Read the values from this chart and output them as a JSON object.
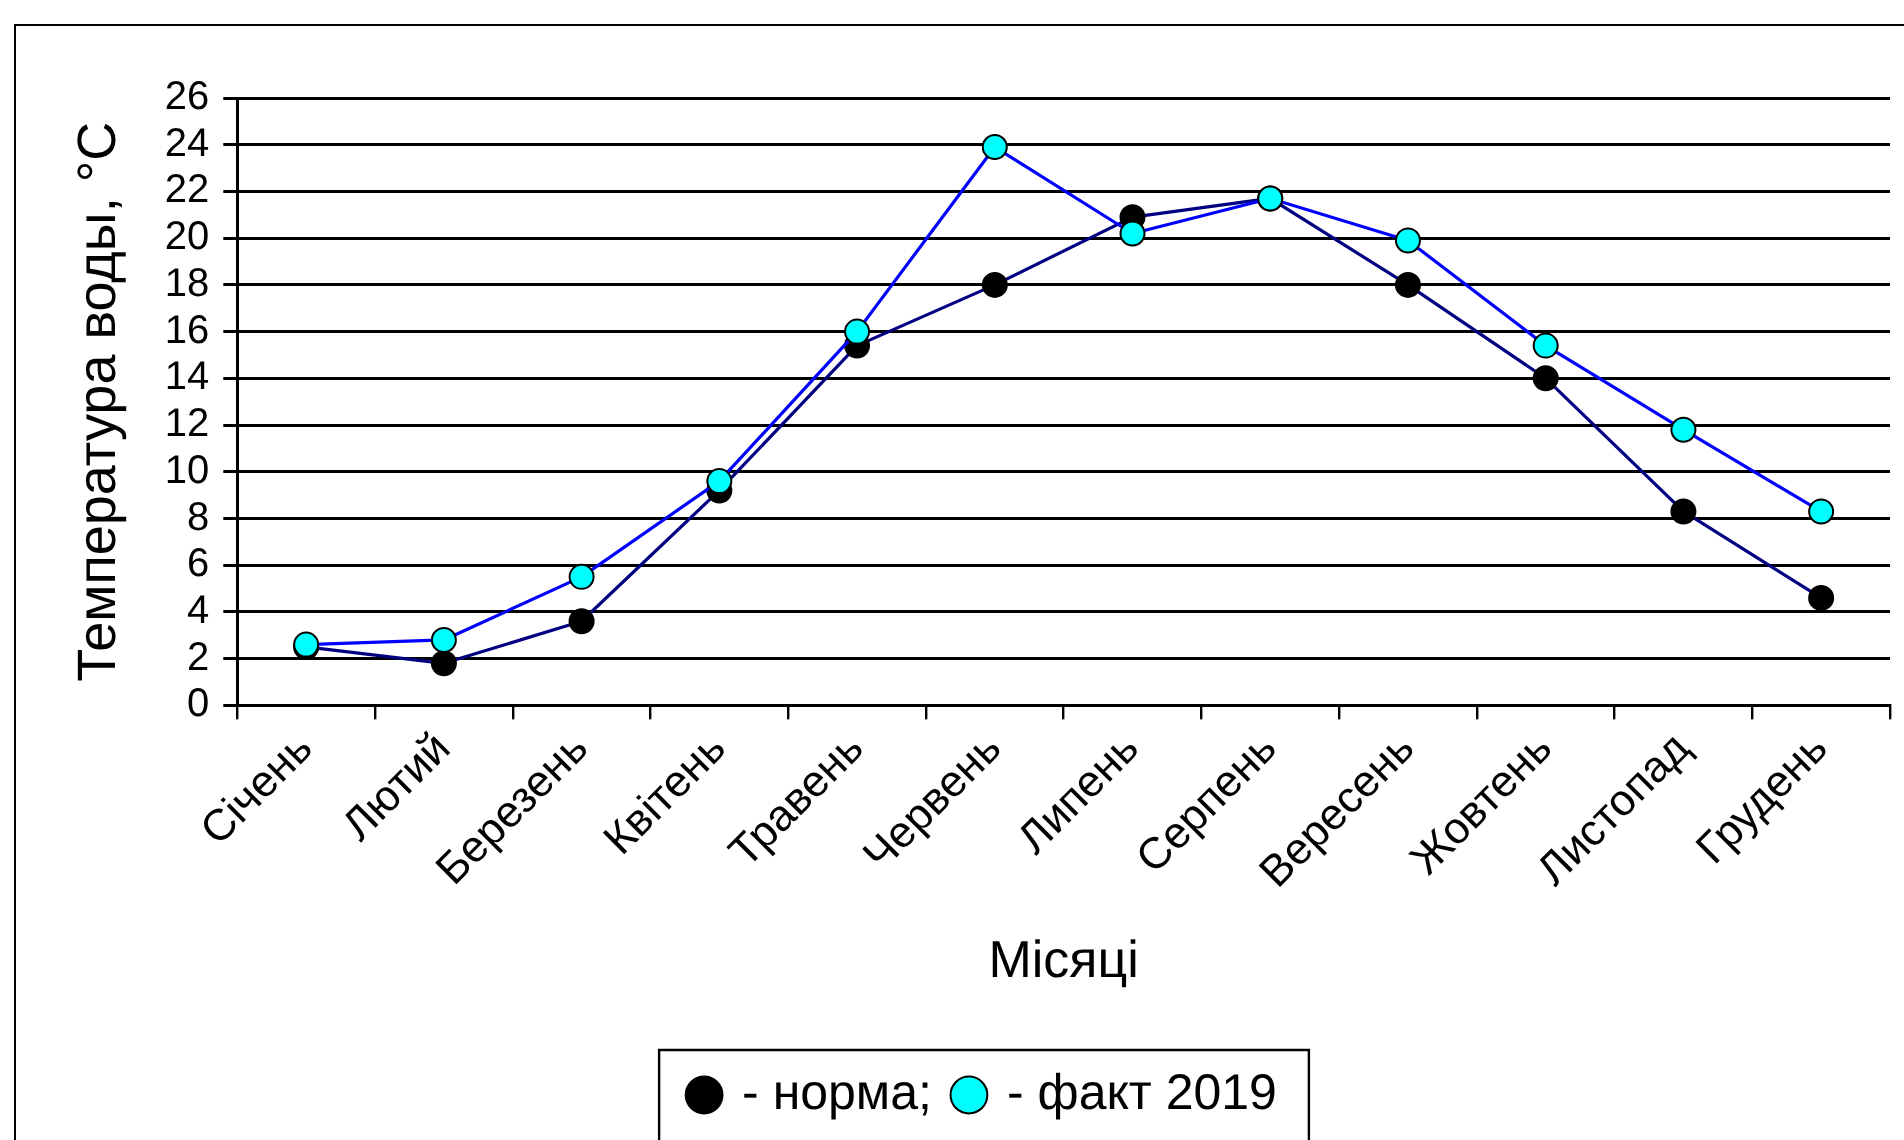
{
  "chart_data": {
    "type": "line",
    "xlabel": "Місяці",
    "ylabel": "Температура воды, °C",
    "categories": [
      "Січень",
      "Лютий",
      "Березень",
      "Квітень",
      "Травень",
      "Червень",
      "Липень",
      "Серпень",
      "Вересень",
      "Жовтень",
      "Листопад",
      "Грудень"
    ],
    "series": [
      {
        "name": "- норма;",
        "color": "#000080",
        "colors": [
          "#000000",
          "#000000",
          "#000000",
          "#000000",
          "#000000",
          "#000000",
          "#000000",
          "#000000",
          "#000000",
          "#000000",
          "#000000",
          "#000000"
        ],
        "values": [
          2.5,
          1.8,
          3.6,
          9.2,
          15.4,
          18.0,
          20.9,
          21.7,
          18.0,
          14.0,
          8.3,
          4.6
        ]
      },
      {
        "name": "- факт 2019",
        "color": "#0000ff",
        "colors": [
          "#00ffff",
          "#00ffff",
          "#00ffff",
          "#00ffff",
          "#00ffff",
          "#00ffff",
          "#00ffff",
          "#00ffff",
          "#00ffff",
          "#00ffff",
          "#00ffff",
          "#00ffff"
        ],
        "values": [
          2.6,
          2.8,
          5.5,
          9.6,
          16.0,
          23.9,
          20.2,
          21.7,
          19.9,
          15.4,
          11.8,
          8.3
        ]
      }
    ],
    "ylim": [
      0,
      26
    ],
    "yticks": [
      0,
      2,
      4,
      6,
      8,
      10,
      12,
      14,
      16,
      18,
      20,
      22,
      24,
      26
    ],
    "grid": "y",
    "legend": "bottom",
    "marker": "circle",
    "line_style": "solid"
  }
}
